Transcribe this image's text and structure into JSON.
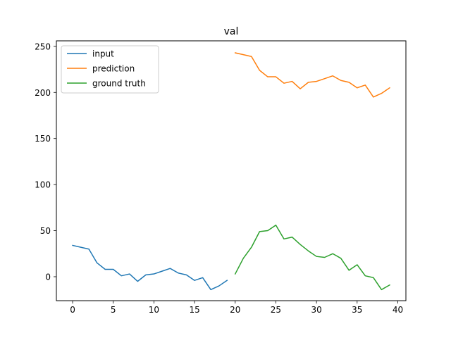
{
  "chart_data": {
    "type": "line",
    "title": "val",
    "xlabel": "",
    "ylabel": "",
    "xlim": [
      -2,
      41
    ],
    "ylim": [
      -26,
      256
    ],
    "xticks": [
      0,
      5,
      10,
      15,
      20,
      25,
      30,
      35,
      40
    ],
    "yticks": [
      0,
      50,
      100,
      150,
      200,
      250
    ],
    "legend_position": "top-left",
    "grid": false,
    "series": [
      {
        "name": "input",
        "color": "#1f77b4",
        "x": [
          0,
          1,
          2,
          3,
          4,
          5,
          6,
          7,
          8,
          9,
          10,
          11,
          12,
          13,
          14,
          15,
          16,
          17,
          18,
          19
        ],
        "y": [
          34,
          32,
          30,
          15,
          8,
          8,
          1,
          3,
          -5,
          2,
          3,
          6,
          9,
          4,
          2,
          -4,
          -1,
          -14,
          -10,
          -4
        ]
      },
      {
        "name": "prediction",
        "color": "#ff7f0e",
        "x": [
          20,
          21,
          22,
          23,
          24,
          25,
          26,
          27,
          28,
          29,
          30,
          31,
          32,
          33,
          34,
          35,
          36,
          37,
          38,
          39
        ],
        "y": [
          243,
          241,
          239,
          224,
          217,
          217,
          210,
          212,
          204,
          211,
          212,
          215,
          218,
          213,
          211,
          205,
          208,
          195,
          199,
          205
        ]
      },
      {
        "name": "ground truth",
        "color": "#2ca02c",
        "x": [
          20,
          21,
          22,
          23,
          24,
          25,
          26,
          27,
          28,
          29,
          30,
          31,
          32,
          33,
          34,
          35,
          36,
          37,
          38,
          39
        ],
        "y": [
          3,
          20,
          32,
          49,
          50,
          56,
          41,
          43,
          35,
          28,
          22,
          21,
          25,
          20,
          7,
          13,
          1,
          -1,
          -14,
          -9
        ]
      }
    ]
  }
}
